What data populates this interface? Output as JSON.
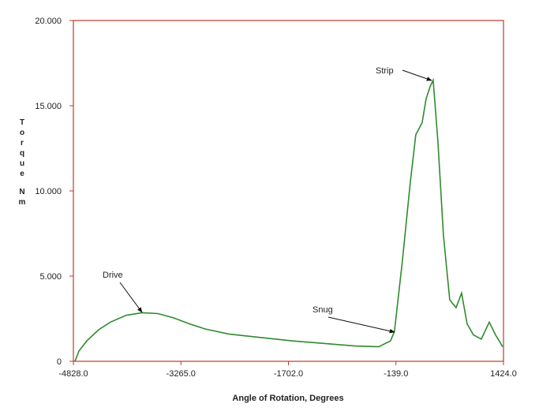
{
  "chart_data": {
    "type": "line",
    "x_label": "Angle of Rotation, Degrees",
    "y_label": [
      "Torque",
      "Nm"
    ],
    "annotations": [
      "Drive",
      "Snug",
      "Strip"
    ],
    "series": [
      {
        "color": "#2e8b2e",
        "x": [
          -4805,
          -4748,
          -4633,
          -4461,
          -4289,
          -4060,
          -3830,
          -3601,
          -3372,
          -3142,
          -2913,
          -2569,
          -2110,
          -1651,
          -1193,
          -734,
          -390,
          -218,
          -161,
          -46,
          69,
          149,
          241,
          299,
          356,
          402,
          471,
          551,
          643,
          735,
          815,
          895,
          987,
          1102,
          1217,
          1308,
          1412
        ],
        "values": [
          0,
          0.6,
          1.2,
          1.85,
          2.3,
          2.7,
          2.85,
          2.8,
          2.55,
          2.2,
          1.9,
          1.6,
          1.4,
          1.2,
          1.05,
          0.9,
          0.85,
          1.2,
          1.75,
          5.9,
          10.5,
          13.3,
          14.0,
          15.4,
          16.1,
          16.5,
          12.9,
          7.4,
          3.6,
          3.15,
          4.0,
          2.2,
          1.55,
          1.3,
          2.3,
          1.55,
          0.85
        ]
      }
    ],
    "xlim": [
      -4828,
      1424
    ],
    "xticks": [
      {
        "value": -4828,
        "label": "-4828.0"
      },
      {
        "value": -3265,
        "label": "-3265.0"
      },
      {
        "value": -1702,
        "label": "-1702.0"
      },
      {
        "value": -139,
        "label": "-139.0"
      },
      {
        "value": 1424,
        "label": "1424.0"
      }
    ],
    "ylim": [
      0,
      20
    ],
    "yticks": [
      0,
      {
        "value": 5,
        "label": "5.000"
      },
      {
        "value": 10,
        "label": "10.000"
      },
      {
        "value": 15,
        "label": "15.000"
      },
      {
        "value": 20,
        "label": "20.000"
      }
    ],
    "frame_color": "#c0392b"
  }
}
